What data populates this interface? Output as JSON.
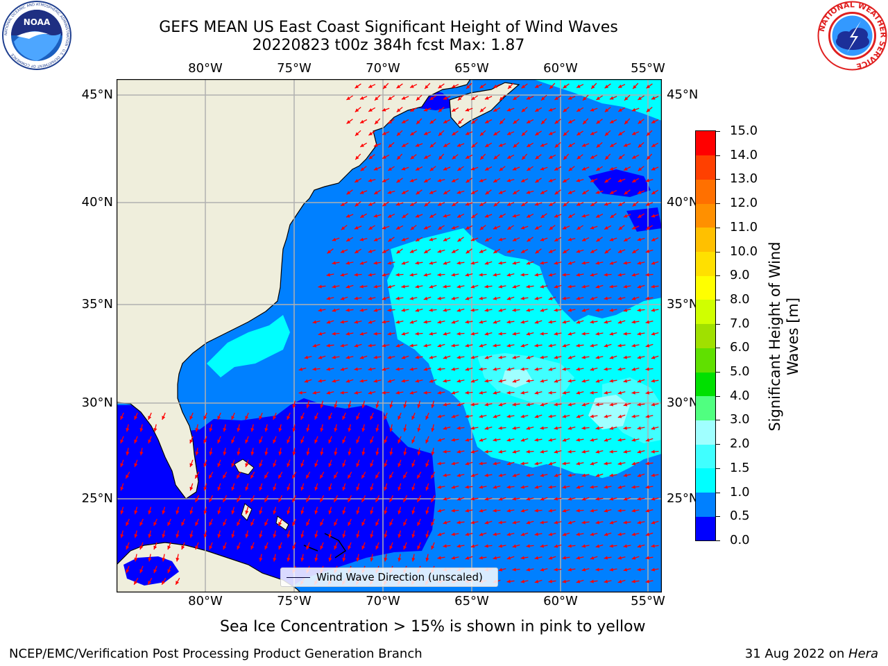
{
  "title": {
    "line1": "GEFS MEAN US East Coast Significant Height of Wind Waves",
    "line2": "20220823 t00z 384h fcst   Max: 1.87"
  },
  "logos": {
    "noaa": {
      "text": "NOAA",
      "ring_text": "NATIONAL OCEANIC AND ATMOSPHERIC ADMINISTRATION · U.S. DEPARTMENT OF COMMERCE"
    },
    "nws": {
      "ring_text": "NATIONAL WEATHER SERVICE"
    }
  },
  "map": {
    "lon_ticks": [
      "80°W",
      "75°W",
      "70°W",
      "65°W",
      "60°W",
      "55°W"
    ],
    "lat_ticks": [
      "45°N",
      "40°N",
      "35°N",
      "30°N",
      "25°N"
    ],
    "legend_label": "Wind Wave Direction (unscaled)",
    "land_color": "#efeedc",
    "arrow_color": "#ff0000",
    "grid_color": "#b0b0b0"
  },
  "colorbar": {
    "title_line1": "Significant Height of Wind",
    "title_line2": "Waves [m]",
    "labels": [
      "0.0",
      "0.5",
      "1.0",
      "1.5",
      "2.0",
      "3.0",
      "4.0",
      "5.0",
      "6.0",
      "7.0",
      "8.0",
      "9.0",
      "10.0",
      "11.0",
      "12.0",
      "13.0",
      "14.0",
      "15.0"
    ],
    "colors": [
      "#0000ff",
      "#0080ff",
      "#00ffff",
      "#40ffff",
      "#a0ffff",
      "#50ff80",
      "#00e000",
      "#60e000",
      "#a0e000",
      "#d0ff00",
      "#ffff00",
      "#ffe000",
      "#ffc000",
      "#ff9000",
      "#ff7000",
      "#ff4000",
      "#ff0000"
    ]
  },
  "subtitle": "Sea Ice Concentration > 15% is shown in pink to yellow",
  "footer": {
    "left": "NCEP/EMC/Verification Post Processing Product Generation Branch",
    "right_date": "31 Aug 2022 on ",
    "right_host": "Hera"
  }
}
